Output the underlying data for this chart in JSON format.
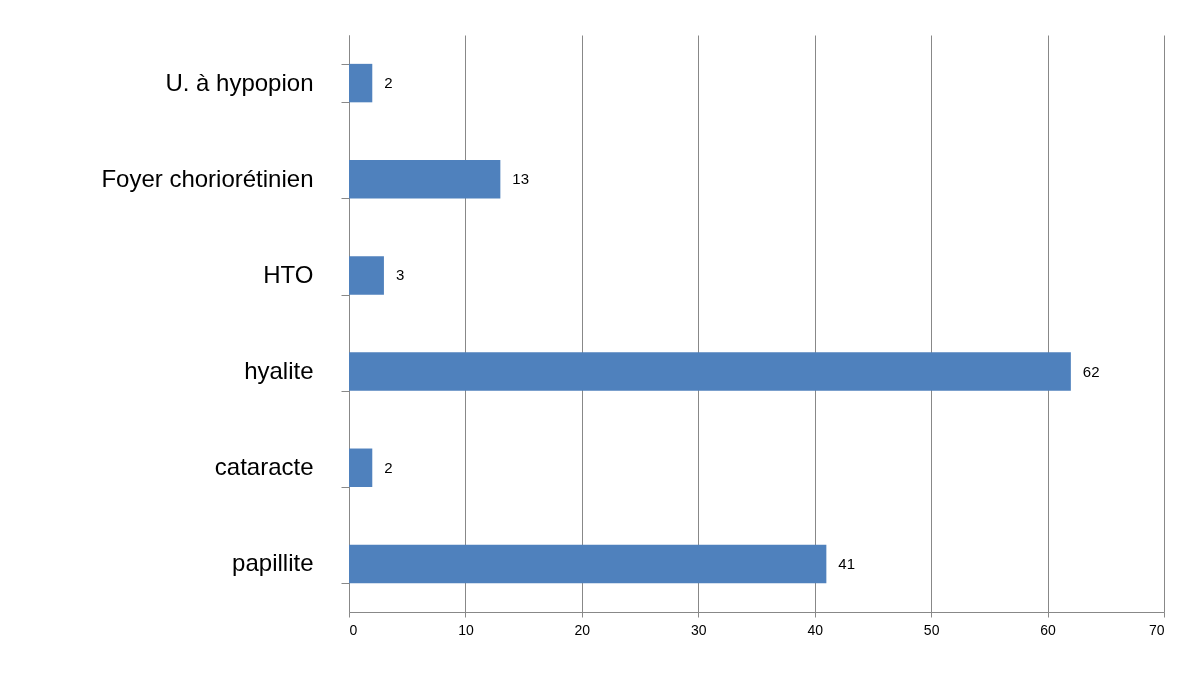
{
  "chart_data": {
    "type": "bar",
    "orientation": "horizontal",
    "categories": [
      "U. à hypopion",
      "Foyer choriorétinien",
      "HTO",
      "hyalite",
      "cataracte",
      "papillite"
    ],
    "values": [
      2,
      13,
      3,
      62,
      2,
      41
    ],
    "color": "#4f81bd",
    "xlim": [
      0,
      70
    ],
    "xticks": [
      0,
      10,
      20,
      30,
      40,
      50,
      60,
      70
    ],
    "grid": "x",
    "data_labels": true
  }
}
